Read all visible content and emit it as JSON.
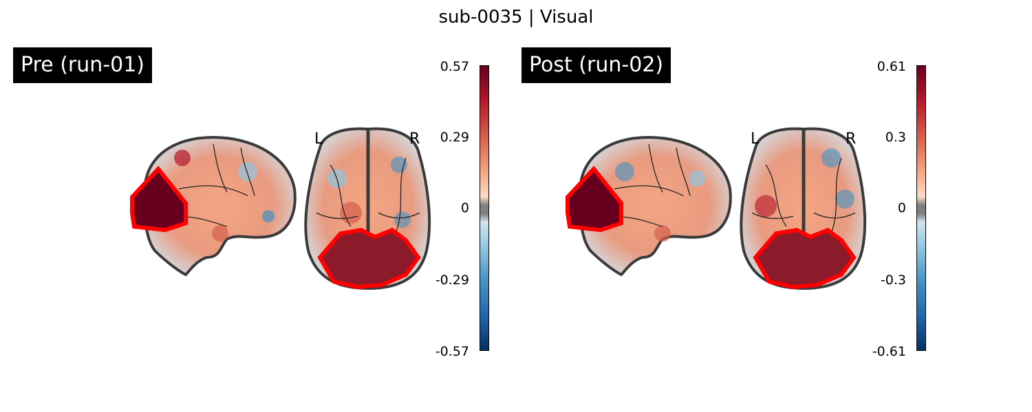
{
  "figure": {
    "title": "sub-0035 | Visual"
  },
  "panels": [
    {
      "label": "Pre (run-01)",
      "left_marker": "L",
      "right_marker": "R",
      "colorbar": {
        "max": "0.57",
        "mid_high": "0.29",
        "zero": "0",
        "mid_low": "-0.29",
        "min": "-0.57"
      }
    },
    {
      "label": "Post (run-02)",
      "left_marker": "L",
      "right_marker": "R",
      "colorbar": {
        "max": "0.61",
        "mid_high": "0.3",
        "zero": "0",
        "mid_low": "-0.3",
        "min": "-0.61"
      }
    }
  ],
  "colors": {
    "roi_outline": "#ff0000",
    "positive": "#b2182b",
    "negative": "#2166ac",
    "brain_outline": "#3a3a3a"
  }
}
